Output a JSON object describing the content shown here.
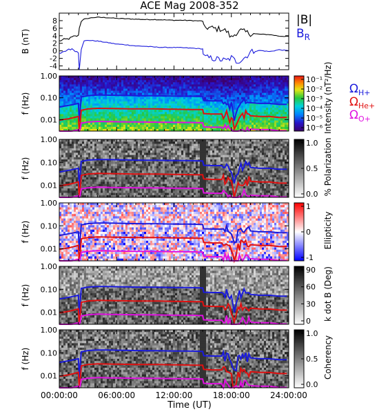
{
  "title": "ACE Mag 2008-352",
  "x_axis": {
    "label": "Time (UT)",
    "tick_labels": [
      "00:00:00",
      "06:00:00",
      "12:00:00",
      "18:00:00",
      "24:00:00"
    ]
  },
  "legends": {
    "top": [
      {
        "text": "|B|",
        "sub": "",
        "color": "#000000"
      },
      {
        "text": "B",
        "sub": "R",
        "color": "#1a1adc"
      }
    ],
    "ions": [
      {
        "text": "Ω",
        "sub": "H+",
        "color": "#1a1adc"
      },
      {
        "text": "Ω",
        "sub": "He+",
        "color": "#e01010"
      },
      {
        "text": "Ω",
        "sub": "O+",
        "color": "#e010e0"
      }
    ]
  },
  "colorbars": [
    {
      "label": "Intensity (nT²/Hz)",
      "ticks": [
        "10⁻¹",
        "10⁻²",
        "10⁻³",
        "10⁻⁴",
        "10⁻⁵",
        "10⁻⁶"
      ],
      "scheme": "rainbow"
    },
    {
      "label": "% Polarization",
      "ticks": [
        "1.0",
        "0.5",
        "0.0"
      ],
      "scheme": "gray"
    },
    {
      "label": "Ellipticity",
      "ticks": [
        "1",
        "0",
        "-1"
      ],
      "scheme": "bwr"
    },
    {
      "label": "k dot B (Deg)",
      "ticks": [
        "90",
        "60",
        "30",
        "0"
      ],
      "scheme": "gray"
    },
    {
      "label": "Coherency",
      "ticks": [
        "1.0",
        "0.5",
        "0.0"
      ],
      "scheme": "gray"
    }
  ],
  "chart_data": [
    {
      "type": "line",
      "ylabel": "B (nT)",
      "xlim": [
        0,
        24
      ],
      "ylim": [
        -5,
        10
      ],
      "yticks": [
        "-4",
        "-2",
        "0",
        "2",
        "4",
        "6",
        "8"
      ],
      "series": [
        {
          "name": "|B|",
          "color": "#000000",
          "x": [
            0,
            0.5,
            1,
            1.5,
            2.0,
            2.1,
            2.3,
            2.6,
            3,
            3.5,
            4,
            5,
            6,
            7,
            8,
            9,
            10,
            11,
            12,
            13,
            14,
            15.0,
            15.1,
            15.5,
            16,
            16.5,
            17,
            17.5,
            18,
            18.5,
            19,
            19.5,
            20,
            21,
            22,
            23,
            24
          ],
          "y": [
            2.6,
            3.0,
            3.2,
            3.8,
            4.0,
            6.0,
            7.8,
            8.4,
            8.6,
            8.8,
            8.9,
            8.8,
            8.6,
            8.5,
            8.4,
            8.3,
            8.3,
            8.2,
            8.1,
            8.1,
            8.0,
            7.9,
            6.3,
            6.2,
            6.0,
            5.8,
            5.8,
            5.2,
            3.5,
            4.8,
            5.3,
            4.9,
            4.6,
            4.4,
            4.3,
            3.9,
            3.8
          ]
        },
        {
          "name": "B",
          "color": "#1a1adc",
          "x": [
            0,
            0.5,
            1,
            1.5,
            2.0,
            2.1,
            2.3,
            2.6,
            3,
            4,
            5,
            6,
            7,
            8,
            9,
            10,
            11,
            12,
            13,
            14,
            15.0,
            15.1,
            15.5,
            16,
            16.5,
            17,
            17.5,
            18,
            18.5,
            19,
            19.5,
            20,
            21,
            22,
            23,
            24
          ],
          "y": [
            -0.8,
            -0.3,
            0.5,
            0.3,
            -0.5,
            -4.8,
            0.4,
            2.6,
            2.8,
            2.6,
            2.2,
            1.8,
            1.6,
            1.3,
            1.2,
            1.0,
            0.9,
            0.9,
            0.8,
            0.7,
            0.5,
            -1.5,
            -1.8,
            -2.0,
            -2.2,
            -2.4,
            -2.6,
            -1.8,
            -2.8,
            -2.5,
            -1.6,
            -0.3,
            0.1,
            -0.2,
            0.3,
            0.0
          ]
        }
      ]
    },
    {
      "type": "heatmap",
      "ylabel": "f (Hz)",
      "yscale": "log",
      "ylim": [
        0.003,
        1.0
      ],
      "yticks": [
        "1.00",
        "0.10",
        "0.01"
      ],
      "xlim": [
        0,
        24
      ],
      "series": [
        {
          "name": "ΩH+",
          "color": "#1a1adc",
          "x": [
            0,
            1,
            2.0,
            2.1,
            2.3,
            3,
            4,
            6,
            8,
            10,
            12,
            14,
            15.0,
            15.1,
            16,
            17,
            17.5,
            18,
            18.3,
            18.7,
            19,
            19.5,
            20,
            21,
            22,
            23,
            24
          ],
          "y": [
            0.038,
            0.045,
            0.055,
            0.008,
            0.11,
            0.125,
            0.133,
            0.13,
            0.125,
            0.123,
            0.12,
            0.118,
            0.115,
            0.075,
            0.072,
            0.072,
            0.07,
            0.04,
            0.015,
            0.05,
            0.06,
            0.065,
            0.06,
            0.055,
            0.055,
            0.05,
            0.05
          ]
        },
        {
          "name": "ΩHe+",
          "color": "#e01010",
          "x": [
            0,
            1,
            2.0,
            2.1,
            2.3,
            3,
            4,
            6,
            8,
            10,
            12,
            14,
            15.0,
            15.1,
            16,
            17,
            17.5,
            18,
            18.3,
            18.7,
            19,
            19.5,
            20,
            21,
            22,
            23,
            24
          ],
          "y": [
            0.0095,
            0.011,
            0.014,
            0.002,
            0.027,
            0.031,
            0.033,
            0.032,
            0.031,
            0.031,
            0.03,
            0.029,
            0.029,
            0.019,
            0.018,
            0.018,
            0.018,
            0.01,
            0.004,
            0.0125,
            0.015,
            0.016,
            0.015,
            0.014,
            0.014,
            0.0125,
            0.0125
          ]
        },
        {
          "name": "ΩO+",
          "color": "#e010e0",
          "x": [
            0,
            1,
            2.0,
            2.1,
            2.3,
            3,
            4,
            6,
            8,
            10,
            12,
            14,
            15.0,
            15.1,
            16,
            17,
            17.5,
            18,
            18.3,
            18.7,
            19,
            19.5,
            20,
            21,
            22,
            23,
            24
          ],
          "y": [
            0.0024,
            0.0028,
            0.0035,
            0.002,
            0.007,
            0.0078,
            0.0083,
            0.008,
            0.0078,
            0.0077,
            0.0075,
            0.0074,
            0.0072,
            0.0047,
            0.0045,
            0.0045,
            0.0044,
            0.0025,
            0.002,
            0.0031,
            0.0037,
            0.004,
            0.0037,
            0.0035,
            0.0035,
            0.0031,
            0.0031
          ]
        }
      ]
    },
    {
      "type": "heatmap",
      "ylabel": "f (Hz)",
      "yscale": "log",
      "ylim": [
        0.003,
        1.0
      ],
      "yticks": [
        "1.00",
        "0.10",
        "0.01"
      ],
      "xlim": [
        0,
        24
      ],
      "series_ref": "same cyclotron frequency lines as panel 2"
    },
    {
      "type": "heatmap",
      "ylabel": "f (Hz)",
      "yscale": "log",
      "ylim": [
        0.003,
        1.0
      ],
      "yticks": [
        "1.00",
        "0.10",
        "0.01"
      ],
      "xlim": [
        0,
        24
      ],
      "series_ref": "same cyclotron frequency lines as panel 2"
    },
    {
      "type": "heatmap",
      "ylabel": "f (Hz)",
      "yscale": "log",
      "ylim": [
        0.003,
        1.0
      ],
      "yticks": [
        "1.00",
        "0.10",
        "0.01"
      ],
      "xlim": [
        0,
        24
      ],
      "series_ref": "same cyclotron frequency lines as panel 2"
    },
    {
      "type": "heatmap",
      "ylabel": "f (Hz)",
      "yscale": "log",
      "ylim": [
        0.003,
        1.0
      ],
      "yticks": [
        "1.00",
        "0.10",
        "0.01"
      ],
      "xlim": [
        0,
        24
      ],
      "series_ref": "same cyclotron frequency lines as panel 2"
    }
  ]
}
